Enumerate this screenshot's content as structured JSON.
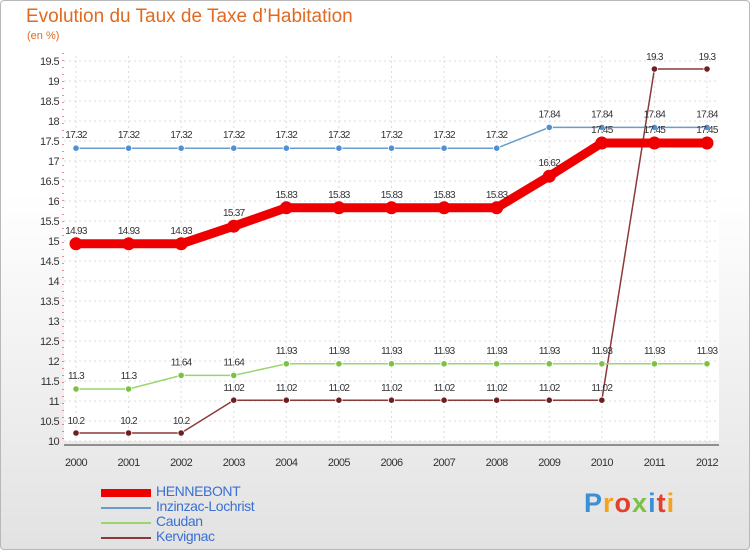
{
  "title": "Evolution du Taux de Taxe d’Habitation",
  "unit_label": "(en %)",
  "logo": {
    "text": "Proxiti",
    "colors": [
      "#3b8fd6",
      "#f5a31a",
      "#e0422b",
      "#7cc242",
      "#3b8fd6",
      "#e0422b",
      "#f5a31a"
    ]
  },
  "chart_data": {
    "type": "line",
    "title": "Evolution du Taux de Taxe d’Habitation",
    "ylabel": "(en %)",
    "xlabel": "",
    "x": [
      "2000",
      "2001",
      "2002",
      "2003",
      "2004",
      "2005",
      "2006",
      "2007",
      "2008",
      "2009",
      "2010",
      "2011",
      "2012"
    ],
    "ylim": [
      10,
      19.5
    ],
    "yticks": [
      "10",
      "10.5",
      "11",
      "11.5",
      "12",
      "12.5",
      "13",
      "13.5",
      "14",
      "14.5",
      "15",
      "15.5",
      "16",
      "16.5",
      "17",
      "17.5",
      "18",
      "18.5",
      "19",
      "19.5"
    ],
    "grid": true,
    "legend_position": "bottom-left",
    "series": [
      {
        "name": "HENNEBONT",
        "color": "#ee0000",
        "values": [
          14.93,
          14.93,
          14.93,
          15.37,
          15.83,
          15.83,
          15.83,
          15.83,
          15.83,
          16.62,
          17.45,
          17.45,
          17.45
        ]
      },
      {
        "name": "Inzinzac-Lochrist",
        "color": "#6a9ccc",
        "values": [
          17.32,
          17.32,
          17.32,
          17.32,
          17.32,
          17.32,
          17.32,
          17.32,
          17.32,
          17.84,
          17.84,
          17.84,
          17.84
        ]
      },
      {
        "name": "Caudan",
        "color": "#99d66f",
        "values": [
          11.3,
          11.3,
          11.64,
          11.64,
          11.93,
          11.93,
          11.93,
          11.93,
          11.93,
          11.93,
          11.93,
          11.93,
          11.93
        ]
      },
      {
        "name": "Kervignac",
        "color": "#8a3a3a",
        "values": [
          10.2,
          10.2,
          10.2,
          11.02,
          11.02,
          11.02,
          11.02,
          11.02,
          11.02,
          11.02,
          11.02,
          19.3,
          19.3
        ]
      }
    ]
  }
}
